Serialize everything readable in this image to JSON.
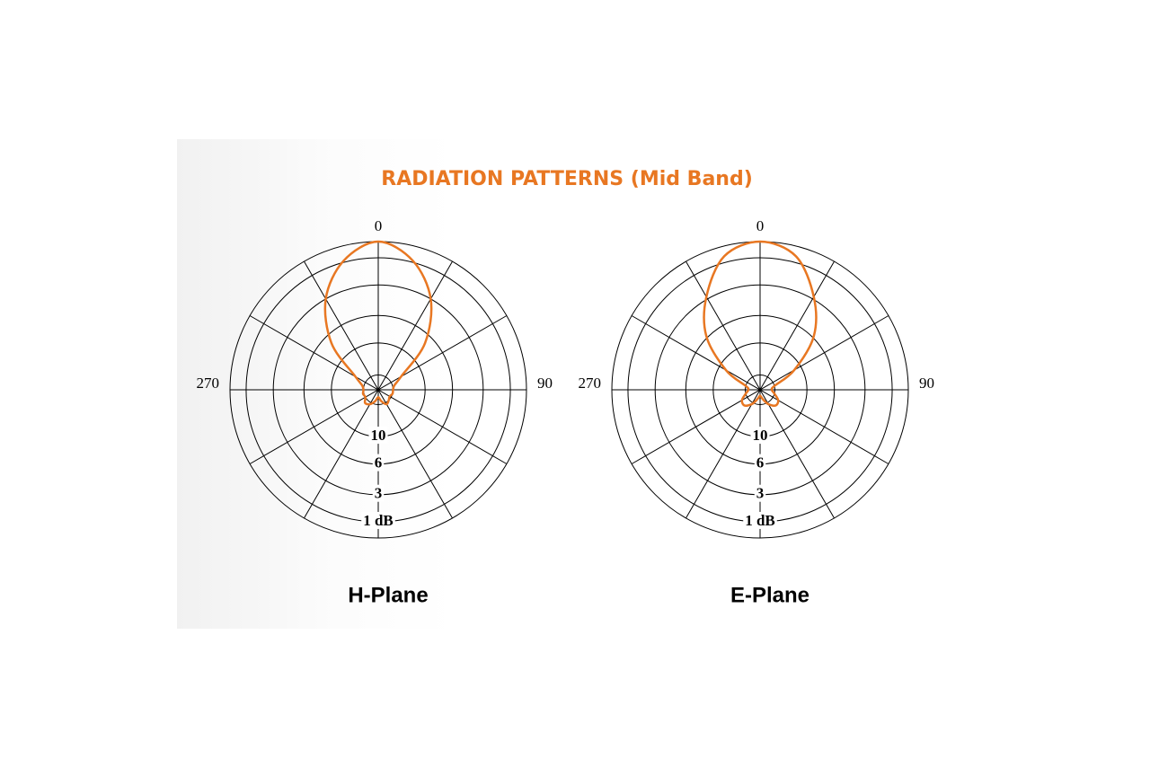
{
  "title": "RADIATION PATTERNS (Mid Band)",
  "chart_data": [
    {
      "type": "polar",
      "title": "H-Plane",
      "theta": [
        0,
        15,
        30,
        45,
        60,
        75,
        90,
        105,
        120,
        135,
        150,
        165,
        180,
        195,
        210,
        225,
        240,
        255,
        270,
        285,
        300,
        315,
        330,
        345
      ],
      "series": [
        {
          "color": "#e87722",
          "values": [
            0,
            0.9,
            3,
            7,
            15,
            19,
            20,
            20,
            21,
            20,
            19,
            22,
            26,
            22,
            19,
            18,
            20,
            19.5,
            20,
            19,
            15,
            7,
            3,
            0.9
          ]
        }
      ],
      "thetaticks": [
        0,
        90,
        270
      ],
      "rlim": [
        20,
        0
      ],
      "rticks": [
        {
          "value": 1,
          "label": "1 dB"
        },
        3,
        6,
        10
      ]
    },
    {
      "type": "polar",
      "title": "E-Plane",
      "theta": [
        0,
        15,
        30,
        45,
        60,
        75,
        90,
        105,
        120,
        135,
        150,
        165,
        180,
        195,
        210,
        225,
        240,
        255,
        270,
        285,
        300,
        315,
        330,
        345
      ],
      "series": [
        {
          "color": "#e87722",
          "values": [
            0,
            0.6,
            2.8,
            5.8,
            11.5,
            20,
            22,
            20,
            17,
            16.5,
            19,
            24,
            28,
            24,
            19,
            16.5,
            17,
            20,
            22,
            20,
            11.5,
            5.8,
            2.8,
            0.6
          ]
        }
      ],
      "thetaticks": [
        0,
        90,
        270
      ],
      "rlim": [
        20,
        0
      ],
      "rticks": [
        {
          "value": 1,
          "label": "1 dB"
        },
        3,
        6,
        10
      ]
    }
  ]
}
